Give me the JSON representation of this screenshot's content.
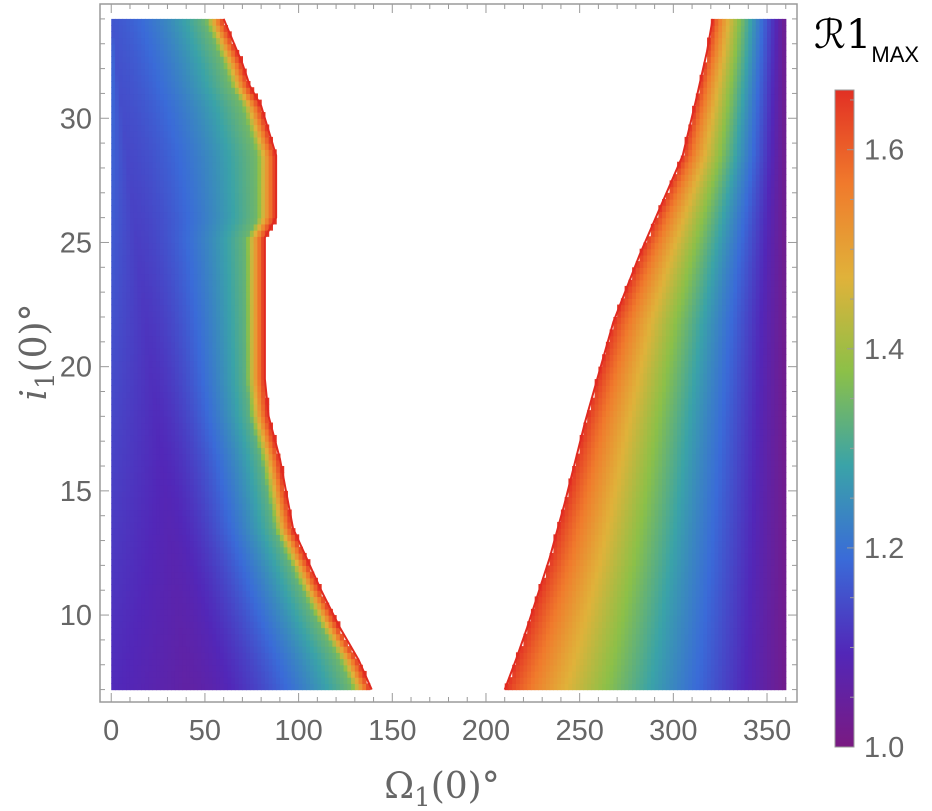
{
  "chart_data": {
    "type": "heatmap",
    "xlabel": {
      "main": "Ω",
      "sub": "1",
      "rest": "(0)°"
    },
    "ylabel": {
      "main": "i",
      "sub": "1",
      "rest": "(0)°"
    },
    "colorbar_label": {
      "main": "ℛ",
      "sub1": "1",
      "sub2": "MAX"
    },
    "xlim": [
      -6,
      366
    ],
    "ylim": [
      6.5,
      34.6
    ],
    "x_ticks": [
      0,
      50,
      100,
      150,
      200,
      250,
      300,
      350
    ],
    "y_ticks": [
      10,
      15,
      20,
      25,
      30
    ],
    "colorbar_range": [
      1.0,
      1.66
    ],
    "colorbar_ticks": [
      1.0,
      1.2,
      1.4,
      1.6
    ],
    "colormap": [
      "#7a1a82",
      "#5227b8",
      "#3a6bd8",
      "#3aa3a8",
      "#8cc048",
      "#e0b23a",
      "#f07a2c",
      "#e23024"
    ],
    "data_region": {
      "omega_range": [
        0,
        360
      ],
      "i_range": [
        7.0,
        34.0
      ]
    },
    "left_region_boundary": [
      {
        "i": 7.0,
        "omega": 139
      },
      {
        "i": 8.2,
        "omega": 132
      },
      {
        "i": 9.5,
        "omega": 122
      },
      {
        "i": 11.0,
        "omega": 112
      },
      {
        "i": 13.5,
        "omega": 97
      },
      {
        "i": 16.3,
        "omega": 90
      },
      {
        "i": 18.0,
        "omega": 84
      },
      {
        "i": 19.5,
        "omega": 82
      },
      {
        "i": 25.2,
        "omega": 82
      },
      {
        "i": 26.0,
        "omega": 88
      },
      {
        "i": 28.5,
        "omega": 88
      },
      {
        "i": 30.5,
        "omega": 80
      },
      {
        "i": 31.3,
        "omega": 74
      },
      {
        "i": 32.2,
        "omega": 70
      },
      {
        "i": 34.0,
        "omega": 60
      }
    ],
    "right_region_boundary": [
      {
        "i": 7.0,
        "omega": 210
      },
      {
        "i": 8.2,
        "omega": 216
      },
      {
        "i": 9.5,
        "omega": 222
      },
      {
        "i": 12.3,
        "omega": 234
      },
      {
        "i": 14.5,
        "omega": 242
      },
      {
        "i": 16.3,
        "omega": 248
      },
      {
        "i": 17.8,
        "omega": 253
      },
      {
        "i": 21.8,
        "omega": 268
      },
      {
        "i": 24.5,
        "omega": 282
      },
      {
        "i": 28.5,
        "omega": 305
      },
      {
        "i": 30.7,
        "omega": 312
      },
      {
        "i": 32.7,
        "omega": 318
      },
      {
        "i": 34.0,
        "omega": 321
      }
    ],
    "left_region_values": {
      "near_boundary": 1.66,
      "gradient": [
        {
          "i": 7,
          "omega_at_min": 40,
          "value_at_left_edge": 1.02
        },
        {
          "i": 20,
          "omega_at_min": 10,
          "value_at_left_edge": 1.06
        },
        {
          "i": 34,
          "omega_at_min": 0,
          "value_at_boundary": 1.45
        }
      ]
    },
    "right_region_values": {
      "near_boundary": 1.66,
      "value_at_omega_360": 1.02
    }
  }
}
